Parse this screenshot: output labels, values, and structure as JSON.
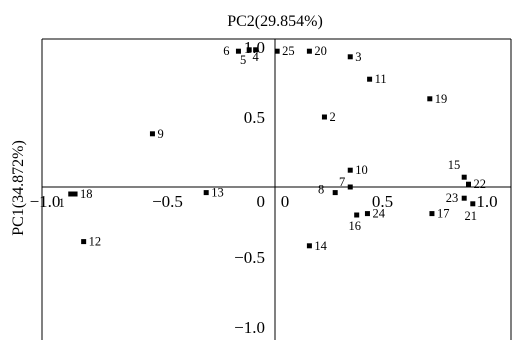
{
  "chart_data": {
    "type": "scatter",
    "title": "",
    "xlabel": "PC2(29.854%)",
    "ylabel": "PC1(34.872%)",
    "xlim": [
      -1.0,
      1.0
    ],
    "ylim": [
      -1.0,
      1.0
    ],
    "grid": false,
    "legend": "none",
    "x_ticks": [
      {
        "value": -1.0,
        "label": "-1.0"
      },
      {
        "value": -0.5,
        "label": "-0.5"
      },
      {
        "value": 0,
        "label": "0"
      },
      {
        "value": 0.5,
        "label": "0.5"
      },
      {
        "value": 1.0,
        "label": "1.0"
      }
    ],
    "y_ticks": [
      {
        "value": 1.0,
        "label": "1.0"
      },
      {
        "value": 0.5,
        "label": "0.5"
      },
      {
        "value": 0,
        "label": "0"
      },
      {
        "value": -0.5,
        "label": "-0.5"
      },
      {
        "value": -1.0,
        "label": "-1.0"
      }
    ],
    "points": [
      {
        "label": "1",
        "x": -0.95,
        "y": -0.05
      },
      {
        "label": "2",
        "x": 0.23,
        "y": 0.5
      },
      {
        "label": "3",
        "x": 0.35,
        "y": 0.93
      },
      {
        "label": "4",
        "x": -0.09,
        "y": 0.98
      },
      {
        "label": "5",
        "x": -0.12,
        "y": 0.98
      },
      {
        "label": "6",
        "x": -0.17,
        "y": 0.97
      },
      {
        "label": "7",
        "x": 0.35,
        "y": 0.0
      },
      {
        "label": "8",
        "x": 0.28,
        "y": -0.04
      },
      {
        "label": "9",
        "x": -0.57,
        "y": 0.38
      },
      {
        "label": "10",
        "x": 0.35,
        "y": 0.12
      },
      {
        "label": "11",
        "x": 0.44,
        "y": 0.77
      },
      {
        "label": "12",
        "x": -0.89,
        "y": -0.39
      },
      {
        "label": "13",
        "x": -0.32,
        "y": -0.04
      },
      {
        "label": "14",
        "x": 0.16,
        "y": -0.42
      },
      {
        "label": "15",
        "x": 0.88,
        "y": 0.07
      },
      {
        "label": "16",
        "x": 0.38,
        "y": -0.2
      },
      {
        "label": "17",
        "x": 0.73,
        "y": -0.19
      },
      {
        "label": "18",
        "x": -0.93,
        "y": -0.05
      },
      {
        "label": "19",
        "x": 0.72,
        "y": 0.63
      },
      {
        "label": "20",
        "x": 0.16,
        "y": 0.97
      },
      {
        "label": "21",
        "x": 0.92,
        "y": -0.12
      },
      {
        "label": "22",
        "x": 0.9,
        "y": 0.02
      },
      {
        "label": "23",
        "x": 0.88,
        "y": -0.08
      },
      {
        "label": "24",
        "x": 0.43,
        "y": -0.19
      },
      {
        "label": "25",
        "x": 0.01,
        "y": 0.97
      }
    ]
  }
}
